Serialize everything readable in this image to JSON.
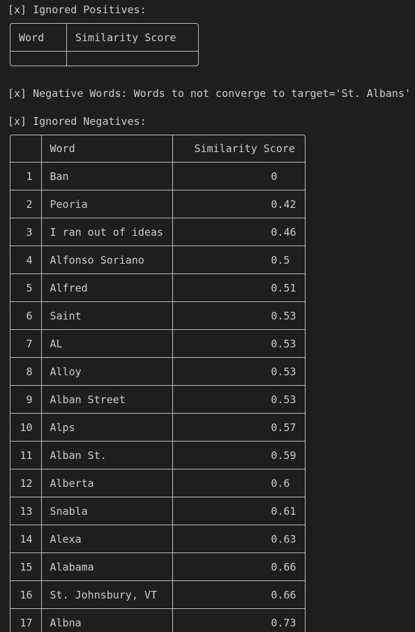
{
  "ignored_positives": {
    "title": "[x] Ignored Positives:",
    "headers": {
      "word": "Word",
      "score": "Similarity Score"
    }
  },
  "negative_words_line": "[x] Negative Words: Words to not converge to target='St. Albans'",
  "ignored_negatives": {
    "title": "[x] Ignored Negatives:",
    "headers": {
      "index": "",
      "word": "Word",
      "score": "Similarity Score"
    },
    "rows": [
      {
        "index": "1",
        "word": "Ban",
        "score": "0"
      },
      {
        "index": "2",
        "word": "Peoria",
        "score": "0.42"
      },
      {
        "index": "3",
        "word": "I ran out of ideas",
        "score": "0.46"
      },
      {
        "index": "4",
        "word": "Alfonso Soriano",
        "score": "0.5"
      },
      {
        "index": "5",
        "word": "Alfred",
        "score": "0.51"
      },
      {
        "index": "6",
        "word": "Saint",
        "score": "0.53"
      },
      {
        "index": "7",
        "word": "AL",
        "score": "0.53"
      },
      {
        "index": "8",
        "word": "Alloy",
        "score": "0.53"
      },
      {
        "index": "9",
        "word": "Alban Street",
        "score": "0.53"
      },
      {
        "index": "10",
        "word": "Alps",
        "score": "0.57"
      },
      {
        "index": "11",
        "word": "Alban St.",
        "score": "0.59"
      },
      {
        "index": "12",
        "word": "Alberta",
        "score": "0.6"
      },
      {
        "index": "13",
        "word": "Snabla",
        "score": "0.61"
      },
      {
        "index": "14",
        "word": "Alexa",
        "score": "0.63"
      },
      {
        "index": "15",
        "word": "Alabama",
        "score": "0.66"
      },
      {
        "index": "16",
        "word": "St. Johnsbury, VT",
        "score": "0.66"
      },
      {
        "index": "17",
        "word": "Albna",
        "score": "0.73"
      }
    ]
  }
}
